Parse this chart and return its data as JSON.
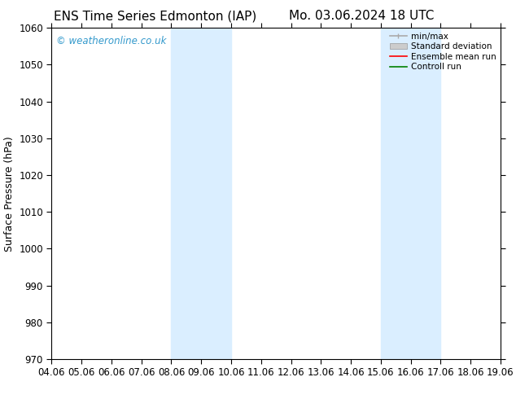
{
  "title_left": "ENS Time Series Edmonton (IAP)",
  "title_right": "Mo. 03.06.2024 18 UTC",
  "ylabel": "Surface Pressure (hPa)",
  "ylim": [
    970,
    1060
  ],
  "yticks": [
    970,
    980,
    990,
    1000,
    1010,
    1020,
    1030,
    1040,
    1050,
    1060
  ],
  "xlim_start": 0,
  "xlim_end": 15,
  "xtick_labels": [
    "04.06",
    "05.06",
    "06.06",
    "07.06",
    "08.06",
    "09.06",
    "10.06",
    "11.06",
    "12.06",
    "13.06",
    "14.06",
    "15.06",
    "16.06",
    "17.06",
    "18.06",
    "19.06"
  ],
  "xtick_positions": [
    0,
    1,
    2,
    3,
    4,
    5,
    6,
    7,
    8,
    9,
    10,
    11,
    12,
    13,
    14,
    15
  ],
  "shaded_bands": [
    {
      "x_start": 4,
      "x_end": 6
    },
    {
      "x_start": 11,
      "x_end": 13
    }
  ],
  "shaded_color": "#daeeff",
  "watermark_text": "© weatheronline.co.uk",
  "watermark_color": "#3399cc",
  "background_color": "#ffffff",
  "title_fontsize": 11,
  "axis_label_fontsize": 9,
  "tick_fontsize": 8.5,
  "legend_fontsize": 7.5,
  "minmax_color": "#aaaaaa",
  "std_color": "#cccccc",
  "mean_color": "red",
  "ctrl_color": "green"
}
